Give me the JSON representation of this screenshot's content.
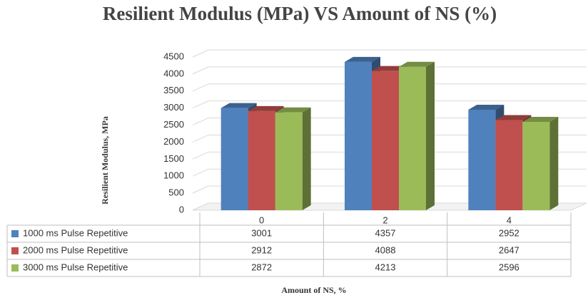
{
  "chart_data": {
    "type": "bar3d",
    "title": "Resilient Modulus (MPa) VS Amount of NS (%)",
    "y_label": "Resilient Modulus, MPa",
    "x_label": "Amount of NS, %",
    "categories": [
      "0",
      "2",
      "4"
    ],
    "series": [
      {
        "name": "1000 ms Pulse Repetitive",
        "color": "#4f81bd",
        "values": [
          3001,
          4357,
          2952
        ]
      },
      {
        "name": "2000 ms Pulse Repetitive",
        "color": "#c0504d",
        "values": [
          2912,
          4088,
          2647
        ]
      },
      {
        "name": "3000 ms Pulse Repetitive",
        "color": "#9bbb59",
        "values": [
          2872,
          4213,
          2596
        ]
      }
    ],
    "ylim": [
      0,
      4500
    ],
    "yticks": [
      0,
      500,
      1000,
      1500,
      2000,
      2500,
      3000,
      3500,
      4000,
      4500
    ],
    "grid": true
  }
}
